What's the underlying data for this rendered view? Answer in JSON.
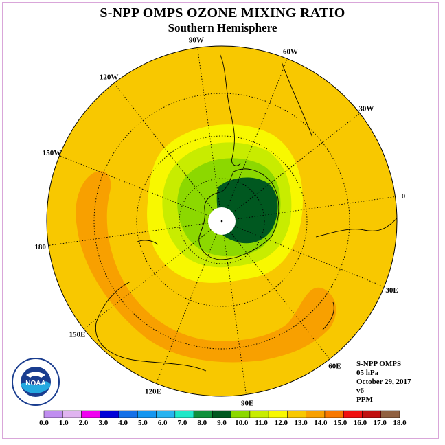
{
  "title": "S-NPP OMPS OZONE MIXING RATIO",
  "subtitle": "Southern Hemisphere",
  "longitude_labels": [
    {
      "text": "0",
      "deg": 0
    },
    {
      "text": "30E",
      "deg": 30
    },
    {
      "text": "60E",
      "deg": 60
    },
    {
      "text": "90E",
      "deg": 90
    },
    {
      "text": "120E",
      "deg": 120
    },
    {
      "text": "150E",
      "deg": 150
    },
    {
      "text": "180",
      "deg": 180
    },
    {
      "text": "150W",
      "deg": -150
    },
    {
      "text": "120W",
      "deg": -120
    },
    {
      "text": "90W",
      "deg": -90
    },
    {
      "text": "60W",
      "deg": -60
    },
    {
      "text": "30W",
      "deg": -30
    }
  ],
  "info": {
    "instrument": "S-NPP OMPS",
    "level": "05 hPa",
    "date": "October 29, 2017",
    "version": "v6",
    "units": "PPM"
  },
  "logo": {
    "text": "NOAA",
    "icon": "noaa-logo"
  },
  "colorbar": {
    "labels": [
      "0.0",
      "1.0",
      "2.0",
      "3.0",
      "4.0",
      "5.0",
      "6.0",
      "7.0",
      "8.0",
      "9.0",
      "10.0",
      "11.0",
      "12.0",
      "13.0",
      "14.0",
      "15.0",
      "16.0",
      "17.0",
      "18.0"
    ],
    "colors": [
      "#c08ef0",
      "#e0b4f0",
      "#f000f0",
      "#0000d8",
      "#1470e8",
      "#1496f0",
      "#28b4f0",
      "#20e8c8",
      "#10903c",
      "#005820",
      "#8cd800",
      "#c8ec00",
      "#f8f800",
      "#f8c800",
      "#f8a000",
      "#f87800",
      "#f01010",
      "#c01010",
      "#906040"
    ]
  },
  "colors": {
    "background_ppm": "#f8c800",
    "band_ppm": "#f8a000",
    "pole_max": "#005820"
  }
}
